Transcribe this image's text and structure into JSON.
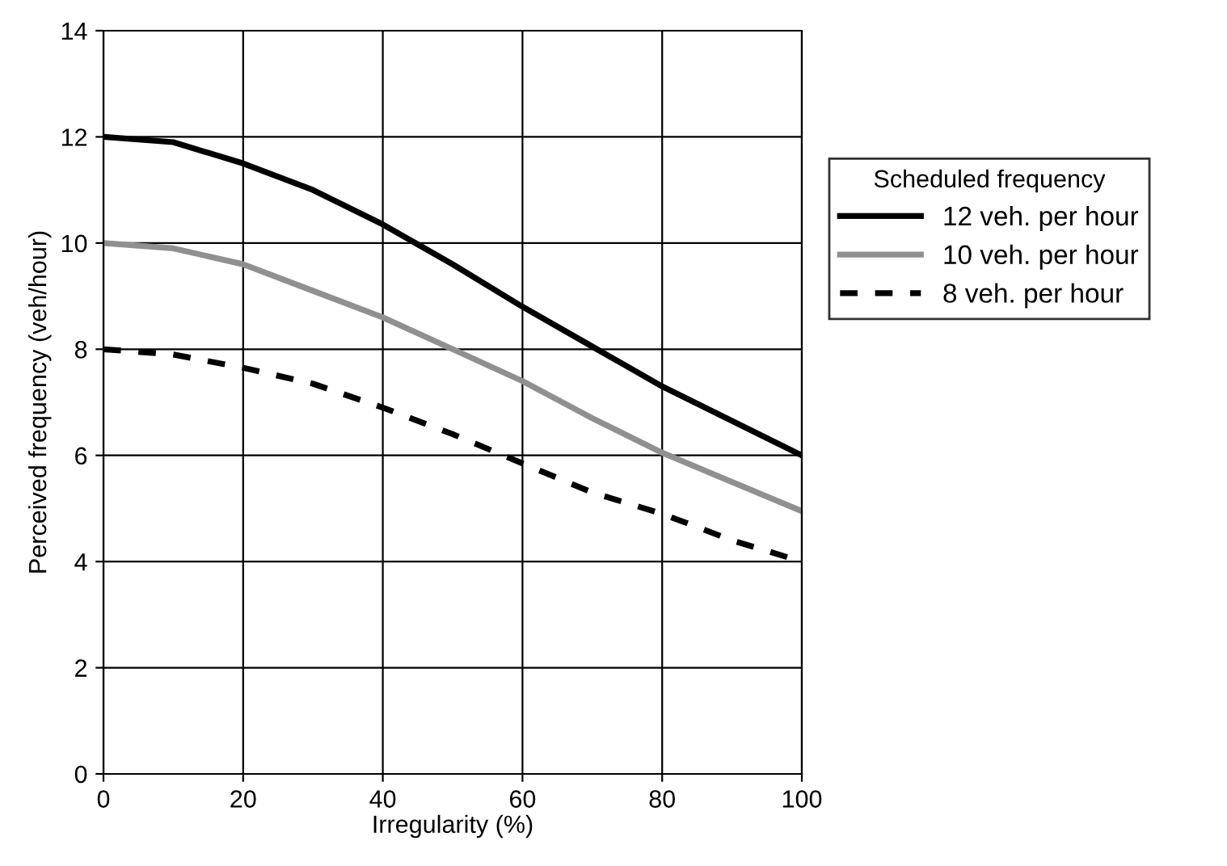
{
  "chart_data": {
    "type": "line",
    "xlabel": "Irregularity (%)",
    "ylabel": "Perceived frequency (veh/hour)",
    "legend_title": "Scheduled frequency",
    "legend": "right",
    "x": [
      0,
      10,
      20,
      30,
      40,
      50,
      60,
      70,
      80,
      90,
      100
    ],
    "series": [
      {
        "name": "12 veh. per hour",
        "color": "#000000",
        "line_style": "solid",
        "values": [
          12.0,
          11.9,
          11.5,
          11.0,
          10.35,
          9.6,
          8.8,
          8.05,
          7.3,
          6.65,
          6.0
        ]
      },
      {
        "name": "10 veh. per hour",
        "color": "#909090",
        "line_style": "solid",
        "values": [
          10.0,
          9.9,
          9.6,
          9.1,
          8.6,
          8.0,
          7.4,
          6.7,
          6.05,
          5.5,
          4.95
        ]
      },
      {
        "name": "8 veh. per hour",
        "color": "#000000",
        "line_style": "dashed",
        "values": [
          8.0,
          7.9,
          7.65,
          7.35,
          6.9,
          6.4,
          5.85,
          5.3,
          4.9,
          4.4,
          4.0
        ]
      }
    ],
    "xlim": [
      0,
      100
    ],
    "xticks": [
      0,
      20,
      40,
      60,
      80,
      100
    ],
    "ylim": [
      0,
      14
    ],
    "yticks": [
      0,
      2,
      4,
      6,
      8,
      10,
      12,
      14
    ],
    "grid": true,
    "marker": "none"
  }
}
